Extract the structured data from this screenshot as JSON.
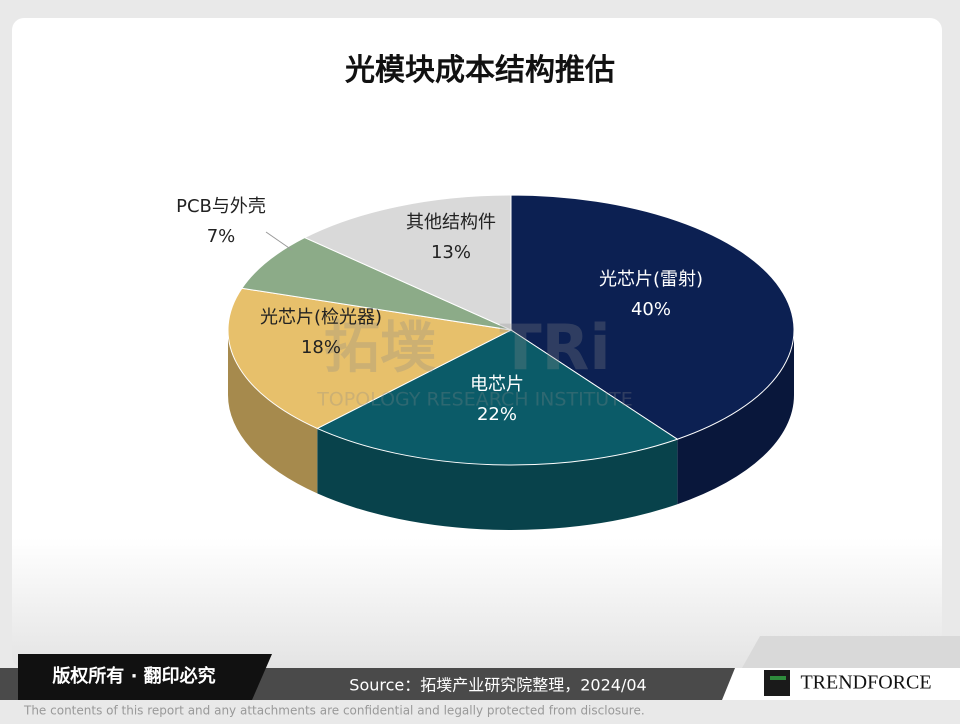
{
  "chart_data": {
    "type": "pie",
    "title": "光模块成本结构推估",
    "categories": [
      "光芯片(雷射)",
      "电芯片",
      "光芯片(检光器)",
      "PCB与外壳",
      "其他结构件"
    ],
    "values": [
      40,
      22,
      18,
      7,
      13
    ],
    "value_labels": [
      "40%",
      "22%",
      "18%",
      "7%",
      "13%"
    ],
    "colors": [
      "#0c2052",
      "#0b5b68",
      "#e7c06b",
      "#8cab88",
      "#d9d9d9"
    ],
    "label_colors": [
      "#ffffff",
      "#ffffff",
      "#222222",
      "#222222",
      "#222222"
    ]
  },
  "watermark": {
    "logo": "拓墣",
    "mark": "TRi",
    "name": "TOPOLOGY RESEARCH INSTITUTE"
  },
  "footer": {
    "copyright": "版权所有 · 翻印必究",
    "source": "Source：拓墣产业研究院整理，2024/04",
    "brand": "TRENDFORCE",
    "disclaimer": "The contents of this report and any attachments are confidential and legally protected from disclosure."
  }
}
